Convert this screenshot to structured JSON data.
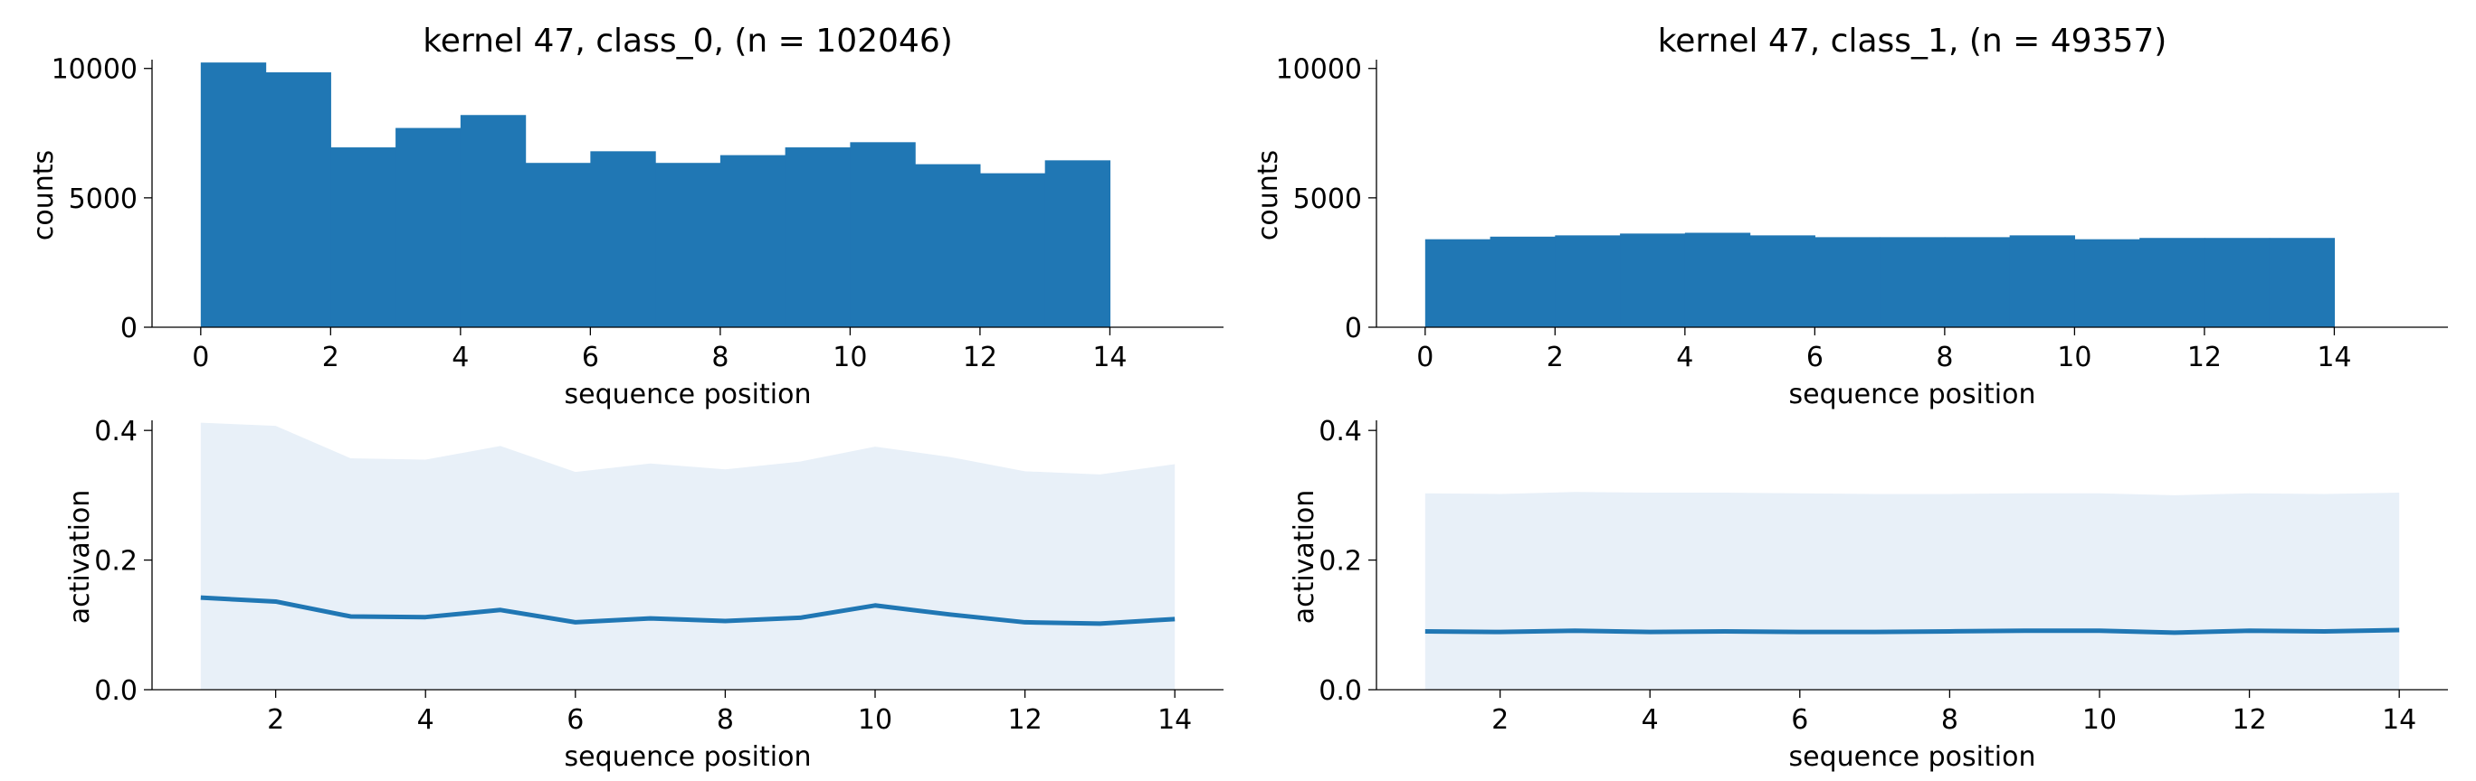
{
  "colors": {
    "bar": "#2077b4",
    "line": "#2077b4",
    "band": "#e8f0f8",
    "axis": "#000000"
  },
  "chart_data": [
    {
      "type": "bar",
      "title": "kernel 47, class_0, (n = 102046)",
      "xlabel": "sequence position",
      "ylabel": "counts",
      "xlim": [
        -0.75,
        15.75
      ],
      "ylim": [
        0,
        10200
      ],
      "xticks": [
        0,
        2,
        4,
        6,
        8,
        10,
        12,
        14
      ],
      "yticks": [
        0,
        5000,
        10000
      ],
      "bin_edges": [
        0,
        1,
        2,
        3,
        4,
        5,
        6,
        7,
        8,
        9,
        10,
        11,
        12,
        13,
        14
      ],
      "values": [
        10230,
        9850,
        6950,
        7700,
        8200,
        6350,
        6800,
        6350,
        6650,
        6950,
        7150,
        6300,
        5950,
        6450
      ]
    },
    {
      "type": "bar",
      "title": "kernel 47, class_1, (n = 49357)",
      "xlabel": "sequence position",
      "ylabel": "counts",
      "xlim": [
        -0.75,
        15.75
      ],
      "ylim": [
        0,
        10200
      ],
      "xticks": [
        0,
        2,
        4,
        6,
        8,
        10,
        12,
        14
      ],
      "yticks": [
        0,
        5000,
        10000
      ],
      "bin_edges": [
        0,
        1,
        2,
        3,
        4,
        5,
        6,
        7,
        8,
        9,
        10,
        11,
        12,
        13,
        14
      ],
      "values": [
        3400,
        3500,
        3550,
        3620,
        3650,
        3550,
        3480,
        3480,
        3480,
        3550,
        3400,
        3450,
        3450,
        3450
      ]
    },
    {
      "type": "area",
      "title": "",
      "xlabel": "sequence position",
      "ylabel": "activation",
      "xlim": [
        0.35,
        14.65
      ],
      "ylim": [
        0,
        0.41
      ],
      "xticks": [
        2,
        4,
        6,
        8,
        10,
        12,
        14
      ],
      "yticks": [
        0.0,
        0.2,
        0.4
      ],
      "ytick_labels": [
        "0.0",
        "0.2",
        "0.4"
      ],
      "x": [
        1,
        2,
        3,
        4,
        5,
        6,
        7,
        8,
        9,
        10,
        11,
        12,
        13,
        14
      ],
      "mean": [
        0.142,
        0.136,
        0.113,
        0.112,
        0.123,
        0.104,
        0.11,
        0.106,
        0.111,
        0.13,
        0.116,
        0.104,
        0.102,
        0.109
      ],
      "band_low": [
        0,
        0,
        0,
        0,
        0,
        0,
        0,
        0,
        0,
        0,
        0,
        0,
        0,
        0
      ],
      "band_high": [
        0.412,
        0.407,
        0.357,
        0.355,
        0.376,
        0.336,
        0.349,
        0.34,
        0.352,
        0.375,
        0.359,
        0.337,
        0.332,
        0.348
      ]
    },
    {
      "type": "area",
      "title": "",
      "xlabel": "sequence position",
      "ylabel": "activation",
      "xlim": [
        0.35,
        14.65
      ],
      "ylim": [
        0,
        0.41
      ],
      "xticks": [
        2,
        4,
        6,
        8,
        10,
        12,
        14
      ],
      "yticks": [
        0.0,
        0.2,
        0.4
      ],
      "ytick_labels": [
        "0.0",
        "0.2",
        "0.4"
      ],
      "x": [
        1,
        2,
        3,
        4,
        5,
        6,
        7,
        8,
        9,
        10,
        11,
        12,
        13,
        14
      ],
      "mean": [
        0.09,
        0.089,
        0.091,
        0.089,
        0.09,
        0.089,
        0.089,
        0.09,
        0.091,
        0.091,
        0.088,
        0.091,
        0.09,
        0.092
      ],
      "band_low": [
        0,
        0,
        0,
        0,
        0,
        0,
        0,
        0,
        0,
        0,
        0,
        0,
        0,
        0
      ],
      "band_high": [
        0.303,
        0.302,
        0.305,
        0.304,
        0.304,
        0.303,
        0.302,
        0.302,
        0.303,
        0.303,
        0.3,
        0.303,
        0.302,
        0.304
      ]
    }
  ]
}
